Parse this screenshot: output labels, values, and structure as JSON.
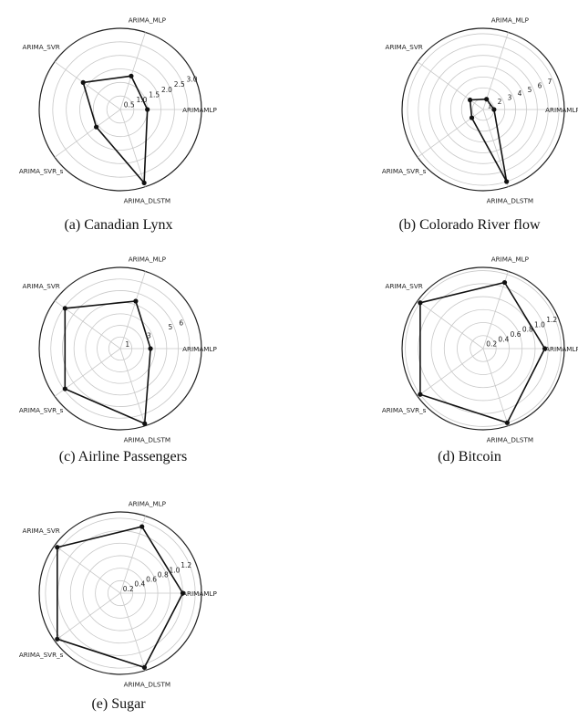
{
  "chart_data": [
    {
      "type": "radar",
      "caption": "(a)  Canadian Lynx",
      "categories": [
        "ARIMAMLP",
        "ARIMA_MLP",
        "ARIMA_SVR",
        "ARIMA_SVR_s",
        "ARIMA_DLSTM"
      ],
      "values": [
        1.0,
        1.3,
        1.7,
        1.1,
        2.85
      ],
      "rmax": 3.0,
      "rticks": [
        0.5,
        1.0,
        1.5,
        2.0,
        2.5,
        3.0
      ],
      "rtick_labels": [
        "0.5",
        "1.0",
        "1.5",
        "2.0",
        "2.5",
        "3.0"
      ],
      "grid": true
    },
    {
      "type": "radar",
      "caption": "(b)  Colorado River flow",
      "categories": [
        "ARIMAMLP",
        "ARIMA_MLP",
        "ARIMA_SVR",
        "ARIMA_SVR_s",
        "ARIMA_DLSTM"
      ],
      "values": [
        1.0,
        1.0,
        1.5,
        1.3,
        7.0
      ],
      "rmax": 7.5,
      "rticks": [
        1,
        2,
        3,
        4,
        5,
        6,
        7
      ],
      "rtick_labels": [
        "1",
        "2",
        "3",
        "4",
        "5",
        "6",
        "7"
      ],
      "grid": true
    },
    {
      "type": "radar",
      "caption": "(c)  Airline Passengers",
      "categories": [
        "ARIMAMLP",
        "ARIMA_MLP",
        "ARIMA_SVR",
        "ARIMA_SVR_s",
        "ARIMA_DLSTM"
      ],
      "values": [
        2.6,
        4.3,
        5.9,
        5.9,
        6.8
      ],
      "rmax": 7.0,
      "rticks": [
        1,
        2,
        3,
        4,
        5,
        6
      ],
      "rtick_labels": [
        "1",
        "",
        "3",
        "",
        "5",
        "6"
      ],
      "grid": true
    },
    {
      "type": "radar",
      "caption": "(d)  Bitcoin",
      "categories": [
        "ARIMAMLP",
        "ARIMA_MLP",
        "ARIMA_SVR",
        "ARIMA_SVR_s",
        "ARIMA_DLSTM"
      ],
      "values": [
        0.95,
        1.07,
        1.2,
        1.2,
        1.2
      ],
      "rmax": 1.25,
      "rticks": [
        0.2,
        0.4,
        0.6,
        0.8,
        1.0,
        1.2
      ],
      "rtick_labels": [
        "0.2",
        "0.4",
        "0.6",
        "0.8",
        "1.0",
        "1.2"
      ],
      "grid": true
    },
    {
      "type": "radar",
      "caption": "(e)  Sugar",
      "categories": [
        "ARIMAMLP",
        "ARIMA_MLP",
        "ARIMA_SVR",
        "ARIMA_SVR_s",
        "ARIMA_DLSTM"
      ],
      "values": [
        1.0,
        1.12,
        1.25,
        1.25,
        1.25
      ],
      "rmax": 1.3,
      "rticks": [
        0.2,
        0.4,
        0.6,
        0.8,
        1.0,
        1.2
      ],
      "rtick_labels": [
        "0.2",
        "0.4",
        "0.6",
        "0.8",
        "1.0",
        "1.2"
      ],
      "grid": true
    }
  ]
}
